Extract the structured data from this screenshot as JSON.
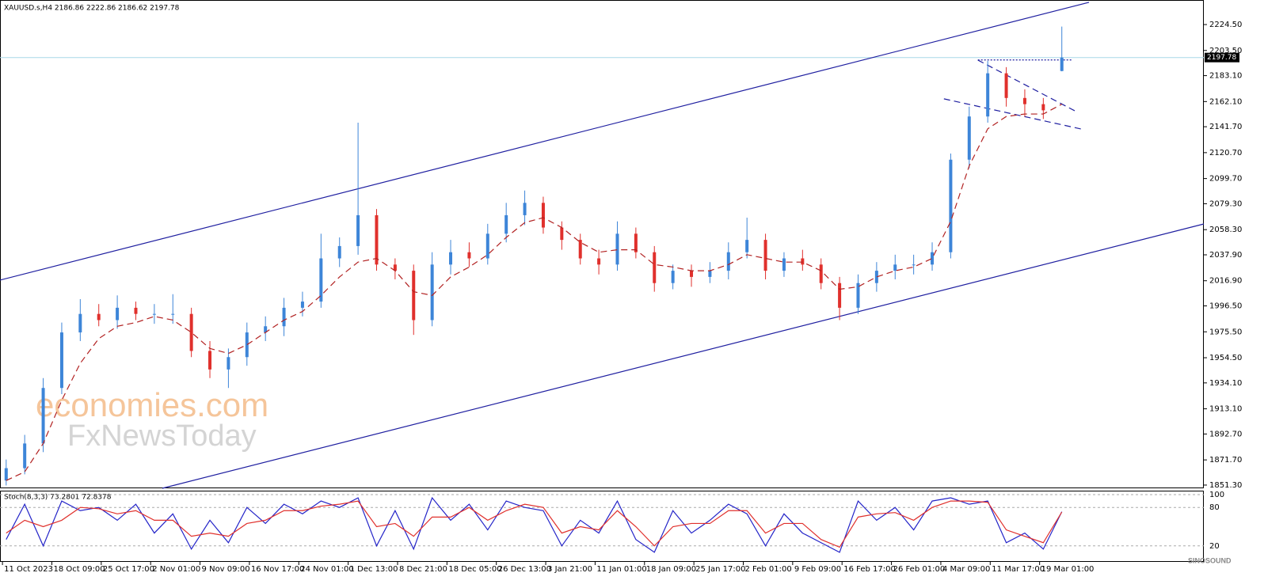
{
  "chart_data": [
    {
      "type": "candlestick",
      "title": "XAUUSD.s,H4  2186.86 2222.86 2186.62 2197.78",
      "up_color": "#3d85d8",
      "down_color": "#e0302c",
      "candles": {
        "x": [
          1,
          4,
          7,
          10,
          13,
          16,
          19,
          22,
          25,
          28,
          31,
          34,
          37,
          40,
          43,
          46,
          49,
          52,
          55,
          58,
          61,
          64,
          67,
          70,
          73,
          76,
          79,
          82,
          85,
          88,
          91,
          94,
          97,
          100,
          103,
          106,
          109,
          112,
          115,
          118,
          121,
          124,
          127,
          130,
          133,
          136,
          139,
          142,
          145,
          148,
          151,
          154,
          157,
          160,
          163,
          166,
          169,
          172
        ],
        "open": [
          1855,
          1865,
          1885,
          1930,
          1975,
          1990,
          1985,
          1995,
          1990,
          1990,
          1990,
          1960,
          1945,
          1955,
          1975,
          1980,
          1995,
          2000,
          2035,
          2045,
          2070,
          2030,
          2025,
          1985,
          2030,
          2040,
          2035,
          2055,
          2070,
          2080,
          2060,
          2050,
          2035,
          2030,
          2055,
          2040,
          2015,
          2025,
          2020,
          2025,
          2040,
          2050,
          2025,
          2035,
          2030,
          2015,
          1995,
          2015,
          2025,
          2030,
          2030,
          2040,
          2115,
          2150,
          2185,
          2165,
          2160,
          2186.86
        ],
        "high": [
          1872,
          1892,
          1938,
          1983,
          2002,
          1998,
          2005,
          2000,
          1998,
          2006,
          1995,
          1968,
          1962,
          1983,
          1988,
          2003,
          2008,
          2055,
          2052,
          2145,
          2075,
          2035,
          2030,
          2040,
          2050,
          2048,
          2063,
          2080,
          2090,
          2085,
          2065,
          2055,
          2042,
          2065,
          2060,
          2045,
          2030,
          2030,
          2032,
          2048,
          2068,
          2055,
          2040,
          2042,
          2035,
          2020,
          2022,
          2032,
          2038,
          2038,
          2048,
          2120,
          2158,
          2195,
          2190,
          2172,
          2165,
          2222.86
        ],
        "low": [
          1851,
          1860,
          1878,
          1925,
          1968,
          1980,
          1978,
          1985,
          1982,
          1982,
          1955,
          1938,
          1930,
          1948,
          1968,
          1972,
          1988,
          1995,
          2028,
          2038,
          2025,
          2018,
          1973,
          1980,
          2022,
          2028,
          2030,
          2048,
          2062,
          2055,
          2042,
          2030,
          2022,
          2025,
          2035,
          2008,
          2010,
          2012,
          2015,
          2018,
          2035,
          2018,
          2020,
          2025,
          2010,
          1985,
          1990,
          2008,
          2018,
          2022,
          2025,
          2035,
          2108,
          2145,
          2158,
          2150,
          2148,
          2186.62
        ],
        "close": [
          1865,
          1885,
          1930,
          1975,
          1990,
          1985,
          1995,
          1990,
          1990,
          1990,
          1960,
          1945,
          1955,
          1975,
          1980,
          1995,
          2000,
          2035,
          2045,
          2070,
          2030,
          2025,
          1985,
          2030,
          2040,
          2035,
          2055,
          2070,
          2080,
          2060,
          2050,
          2035,
          2030,
          2055,
          2040,
          2015,
          2025,
          2020,
          2025,
          2040,
          2050,
          2025,
          2035,
          2030,
          2015,
          1995,
          2015,
          2025,
          2030,
          2030,
          2040,
          2115,
          2150,
          2185,
          2165,
          2160,
          2155,
          2197.78
        ]
      },
      "ma": {
        "color": "#b22222",
        "style": "dashed",
        "values": [
          1855,
          1862,
          1885,
          1920,
          1950,
          1970,
          1980,
          1983,
          1988,
          1985,
          1975,
          1962,
          1958,
          1965,
          1975,
          1985,
          1992,
          2005,
          2020,
          2032,
          2035,
          2025,
          2008,
          2005,
          2020,
          2028,
          2038,
          2052,
          2064,
          2068,
          2060,
          2048,
          2040,
          2042,
          2042,
          2030,
          2028,
          2025,
          2025,
          2030,
          2038,
          2035,
          2032,
          2032,
          2025,
          2010,
          2012,
          2020,
          2025,
          2028,
          2035,
          2065,
          2110,
          2140,
          2150,
          2152,
          2152,
          2160
        ]
      },
      "trendlines": [
        {
          "x": [
            0,
            176.4
          ],
          "y": [
            2017.4,
            2242.5
          ],
          "color": "#1f1fa0",
          "style": "solid"
        },
        {
          "x": [
            26.3,
            195
          ],
          "y": [
            1848.7,
            2062.9
          ],
          "color": "#1f1fa0",
          "style": "solid"
        },
        {
          "x": [
            158.4,
            174.1
          ],
          "y": [
            2195.7,
            2154.6
          ],
          "color": "#1f1fa0",
          "style": "dashed"
        },
        {
          "x": [
            152.9,
            175.1
          ],
          "y": [
            2164.3,
            2139.9
          ],
          "color": "#1f1fa0",
          "style": "dashed"
        },
        {
          "x": [
            158.4,
            173.8
          ],
          "y": [
            2195.8,
            2195.8
          ],
          "color": "#1f1fa0",
          "style": "dotted"
        }
      ],
      "last_price": 2197.78,
      "xlim": [
        0,
        195
      ],
      "ylim": [
        1848.7,
        2244.4
      ],
      "yticks": [
        {
          "value": 2224.5,
          "label": "2224.50"
        },
        {
          "value": 2203.5,
          "label": "2203.50"
        },
        {
          "value": 2183.1,
          "label": "2183.10"
        },
        {
          "value": 2162.1,
          "label": "2162.10"
        },
        {
          "value": 2141.7,
          "label": "2141.70"
        },
        {
          "value": 2120.7,
          "label": "2120.70"
        },
        {
          "value": 2099.7,
          "label": "2099.70"
        },
        {
          "value": 2079.3,
          "label": "2079.30"
        },
        {
          "value": 2058.3,
          "label": "2058.30"
        },
        {
          "value": 2037.9,
          "label": "2037.90"
        },
        {
          "value": 2016.9,
          "label": "2016.90"
        },
        {
          "value": 1996.5,
          "label": "1996.50"
        },
        {
          "value": 1975.5,
          "label": "1975.50"
        },
        {
          "value": 1954.5,
          "label": "1954.50"
        },
        {
          "value": 1934.1,
          "label": "1934.10"
        },
        {
          "value": 1913.1,
          "label": "1913.10"
        },
        {
          "value": 1892.7,
          "label": "1892.70"
        },
        {
          "value": 1871.7,
          "label": "1871.70"
        },
        {
          "value": 1851.3,
          "label": "1851.30"
        }
      ],
      "xticks": [
        {
          "value": 0.4,
          "label": "11 Oct 2023"
        },
        {
          "value": 8.4,
          "label": "18 Oct 09:00"
        },
        {
          "value": 16.4,
          "label": "25 Oct 17:00"
        },
        {
          "value": 24.4,
          "label": "2 Nov 01:00"
        },
        {
          "value": 32.4,
          "label": "9 Nov 09:00"
        },
        {
          "value": 40.4,
          "label": "16 Nov 17:00"
        },
        {
          "value": 48.4,
          "label": "24 Nov 01:00"
        },
        {
          "value": 56.4,
          "label": "1 Dec 13:00"
        },
        {
          "value": 64.4,
          "label": "8 Dec 21:00"
        },
        {
          "value": 72.4,
          "label": "18 Dec 05:00"
        },
        {
          "value": 80.4,
          "label": "26 Dec 13:00"
        },
        {
          "value": 88.4,
          "label": "3 Jan 21:00"
        },
        {
          "value": 96.4,
          "label": "11 Jan 01:00"
        },
        {
          "value": 104.4,
          "label": "18 Jan 09:00"
        },
        {
          "value": 112.4,
          "label": "25 Jan 17:00"
        },
        {
          "value": 120.4,
          "label": "2 Feb 01:00"
        },
        {
          "value": 128.4,
          "label": "9 Feb 09:00"
        },
        {
          "value": 136.4,
          "label": "16 Feb 17:00"
        },
        {
          "value": 144.4,
          "label": "26 Feb 01:00"
        },
        {
          "value": 152.4,
          "label": "4 Mar 09:00"
        },
        {
          "value": 160.4,
          "label": "11 Mar 17:00"
        },
        {
          "value": 168.4,
          "label": "19 Mar 01:00"
        }
      ],
      "watermarks": [
        "economies.com",
        "FxNewsToday",
        "SINOSOUND"
      ]
    },
    {
      "type": "line",
      "title": "Stoch(8,3,3) 73.2801 72.8378",
      "series": [
        {
          "color": "#2424c8",
          "values": [
            30,
            85,
            20,
            90,
            75,
            80,
            60,
            85,
            40,
            70,
            15,
            60,
            25,
            80,
            55,
            85,
            70,
            90,
            80,
            95,
            20,
            75,
            15,
            95,
            60,
            85,
            45,
            90,
            80,
            75,
            20,
            60,
            40,
            90,
            30,
            10,
            75,
            40,
            60,
            85,
            70,
            20,
            70,
            40,
            25,
            10,
            90,
            60,
            80,
            45,
            90,
            95,
            85,
            90,
            25,
            40,
            15,
            73.2801
          ]
        },
        {
          "color": "#e0302c",
          "values": [
            40,
            60,
            50,
            60,
            80,
            78,
            70,
            75,
            60,
            60,
            35,
            40,
            35,
            55,
            60,
            75,
            75,
            82,
            85,
            90,
            50,
            55,
            35,
            65,
            65,
            80,
            60,
            75,
            85,
            80,
            40,
            50,
            45,
            75,
            50,
            20,
            50,
            55,
            55,
            75,
            75,
            40,
            55,
            55,
            30,
            18,
            65,
            70,
            72,
            60,
            80,
            90,
            90,
            88,
            45,
            35,
            25,
            72.8378
          ]
        }
      ],
      "ylim": [
        0,
        100
      ],
      "yticks": [
        100,
        80,
        20
      ]
    }
  ]
}
